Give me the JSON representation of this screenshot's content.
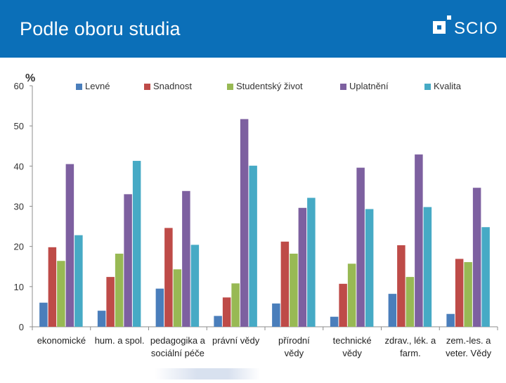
{
  "header": {
    "title": "Podle oboru studia",
    "logo_text": "SCIO"
  },
  "colors": {
    "header_bg": "#0b6fb8",
    "levne": "#4a7ebb",
    "snadnost": "#be4b48",
    "studentsky": "#98b954",
    "uplatneni": "#7d60a0",
    "kvalita": "#46aac5"
  },
  "chart_data": {
    "type": "bar",
    "title": "",
    "ylabel": "%",
    "xlabel": "",
    "ylim": [
      0,
      60
    ],
    "yticks": [
      0,
      10,
      20,
      30,
      40,
      50,
      60
    ],
    "grid": false,
    "legend_position": "top",
    "categories": [
      [
        "ekonomické"
      ],
      [
        "hum. a spol."
      ],
      [
        "pedagogika a",
        "sociální péče"
      ],
      [
        "právní vědy"
      ],
      [
        "přírodní",
        "vědy"
      ],
      [
        "technické",
        "vědy"
      ],
      [
        "zdrav., lék. a",
        "farm."
      ],
      [
        "zem.-les. a",
        "veter. Vědy"
      ]
    ],
    "series": [
      {
        "name": "Levné",
        "color": "#4a7ebb",
        "values": [
          6.0,
          4.0,
          9.5,
          2.7,
          5.8,
          2.5,
          8.2,
          3.2
        ]
      },
      {
        "name": "Snadnost",
        "color": "#be4b48",
        "values": [
          19.8,
          12.4,
          24.6,
          7.3,
          21.2,
          10.7,
          20.3,
          16.9
        ]
      },
      {
        "name": "Studentský život",
        "color": "#98b954",
        "values": [
          16.4,
          18.2,
          14.3,
          10.8,
          18.2,
          15.7,
          12.4,
          16.1
        ]
      },
      {
        "name": "Uplatnění",
        "color": "#7d60a0",
        "values": [
          40.5,
          33.0,
          33.8,
          51.7,
          29.6,
          39.6,
          42.9,
          34.6
        ]
      },
      {
        "name": "Kvalita",
        "color": "#46aac5",
        "values": [
          22.8,
          41.3,
          20.4,
          40.1,
          32.1,
          29.3,
          29.8,
          24.8
        ]
      }
    ]
  }
}
